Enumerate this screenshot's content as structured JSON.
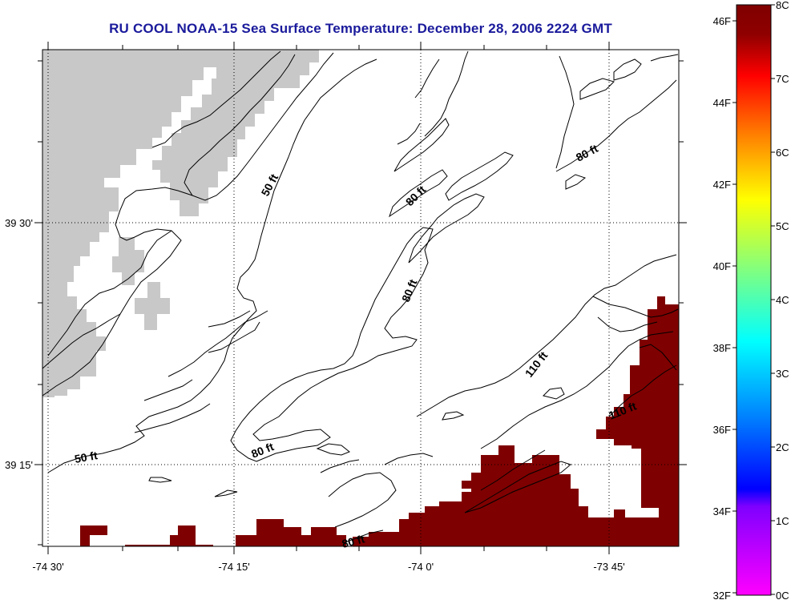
{
  "title": "RU COOL  NOAA-15  Sea Surface Temperature:  December 28, 2006 2224 GMT",
  "map": {
    "lon_ticks": [
      "-74 30'",
      "-74 15'",
      "-74 0'",
      "-73 45'"
    ],
    "lat_ticks": [
      "39 30'",
      "39 15'"
    ],
    "contour_labels": [
      "50 ft",
      "50 ft",
      "80 ft",
      "80 ft",
      "80 ft",
      "80 ft",
      "80 ft",
      "110 ft",
      "110 ft"
    ],
    "colors": {
      "land": "#c8c8c8",
      "sst_hot": "#7f0000",
      "water": "#ffffff"
    }
  },
  "colorbar": {
    "fahrenheit_labels": [
      "46F",
      "44F",
      "42F",
      "40F",
      "38F",
      "36F",
      "34F",
      "32F"
    ],
    "celsius_labels": [
      "8C",
      "7C",
      "6C",
      "5C",
      "4C",
      "3C",
      "2C",
      "1C",
      "0C"
    ]
  }
}
